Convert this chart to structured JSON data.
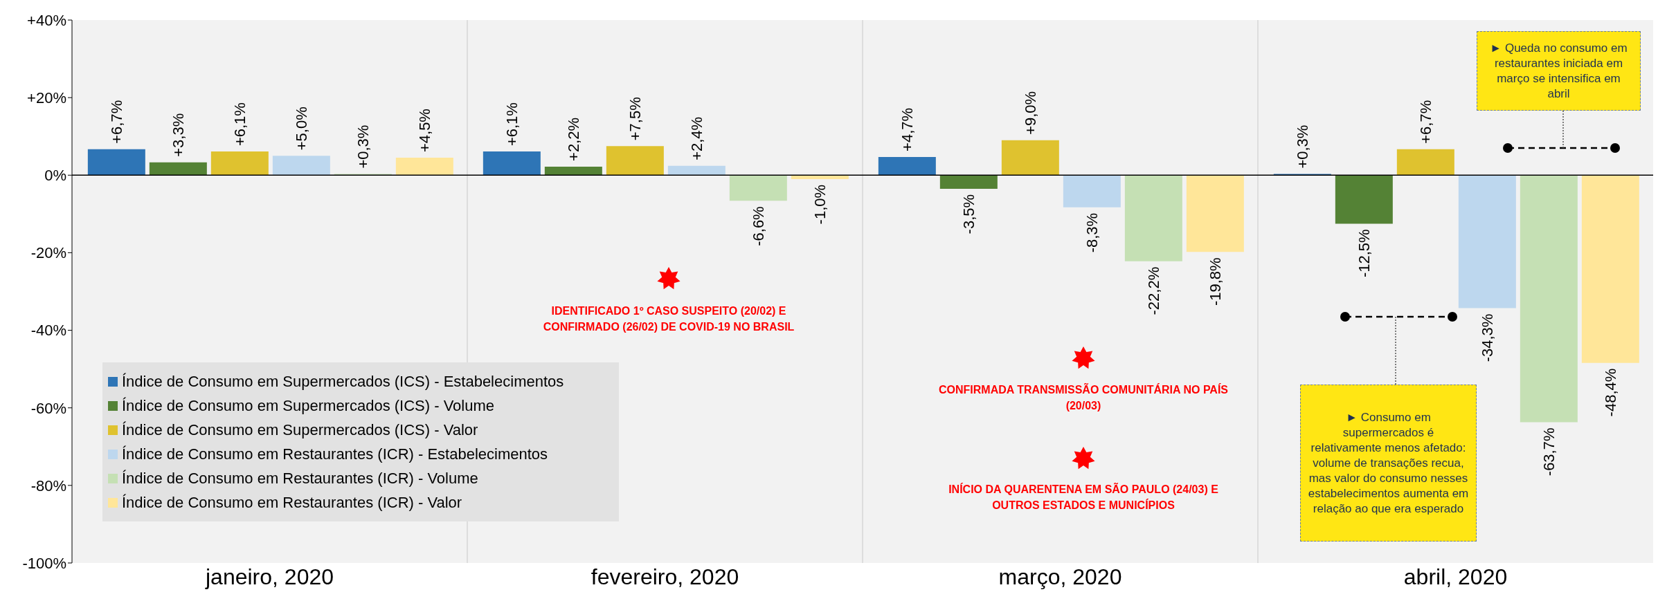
{
  "chart_data": {
    "type": "bar",
    "categories": [
      "janeiro, 2020",
      "fevereiro, 2020",
      "março, 2020",
      "abril, 2020"
    ],
    "series": [
      {
        "name": "Índice de Consumo em Supermercados (ICS) - Estabelecimentos",
        "color": "#2e75b6",
        "values": [
          6.7,
          6.1,
          4.7,
          0.3
        ],
        "value_labels": [
          "+6,7%",
          "+6,1%",
          "+4,7%",
          "+0,3%"
        ]
      },
      {
        "name": "Índice de Consumo em Supermercados (ICS) - Volume",
        "color": "#548235",
        "values": [
          3.3,
          2.2,
          -3.5,
          -12.5
        ],
        "value_labels": [
          "+3,3%",
          "+2,2%",
          "-3,5%",
          "-12,5%"
        ]
      },
      {
        "name": "Índice de Consumo em Supermercados (ICS) - Valor",
        "color": "#dfc22f",
        "values": [
          6.1,
          7.5,
          9.0,
          6.7
        ],
        "value_labels": [
          "+6,1%",
          "+7,5%",
          "+9,0%",
          "+6,7%"
        ]
      },
      {
        "name": "Índice de Consumo em Restaurantes (ICR) - Estabelecimentos",
        "color": "#bdd7ee",
        "values": [
          5.0,
          2.4,
          -8.3,
          -34.3
        ],
        "value_labels": [
          "+5,0%",
          "+2,4%",
          "-8,3%",
          "-34,3%"
        ]
      },
      {
        "name": "Índice de Consumo em Restaurantes (ICR) - Volume",
        "color": "#c5e0b4",
        "values": [
          0.3,
          -6.6,
          -22.2,
          -63.7
        ],
        "value_labels": [
          "+0,3%",
          "-6,6%",
          "-22,2%",
          "-63,7%"
        ]
      },
      {
        "name": "Índice de Consumo em Restaurantes (ICR) - Valor",
        "color": "#ffe699",
        "values": [
          4.5,
          -1.0,
          -19.8,
          -48.4
        ],
        "value_labels": [
          "+4,5%",
          "-1,0%",
          "-19,8%",
          "-48,4%"
        ]
      }
    ],
    "ylim": [
      -100,
      40
    ],
    "yticks": [
      {
        "value": -100,
        "label": "-100%"
      },
      {
        "value": -80,
        "label": "-80%"
      },
      {
        "value": -60,
        "label": "-60%"
      },
      {
        "value": -40,
        "label": "-40%"
      },
      {
        "value": -20,
        "label": "-20%"
      },
      {
        "value": 0,
        "label": "0%"
      },
      {
        "value": 20,
        "label": "+20%"
      },
      {
        "value": 40,
        "label": "+40%"
      }
    ],
    "grid": "x",
    "legend": "bottom left",
    "ref_lines": [
      {
        "axis": "y",
        "value": 0,
        "color": "#000000"
      }
    ],
    "annotations": [
      "IDENTIFICADO 1º CASO SUSPEITO (20/02) E CONFIRMADO (26/02) DE COVID-19 NO BRASIL",
      "CONFIRMADA TRANSMISSÃO COMUNITÁRIA NO PAÍS (20/03)",
      "INÍCIO DA QUARENTENA EM SÃO PAULO (24/03) E OUTROS ESTADOS E MUNICÍPIOS",
      "► Consumo em supermercados é relativamente menos afetado: volume de transações recua, mas valor do consumo nesses estabelecimentos aumenta em relação ao que era esperado",
      "► Queda no consumo em restaurantes iniciada em março se intensifica em abril"
    ]
  }
}
